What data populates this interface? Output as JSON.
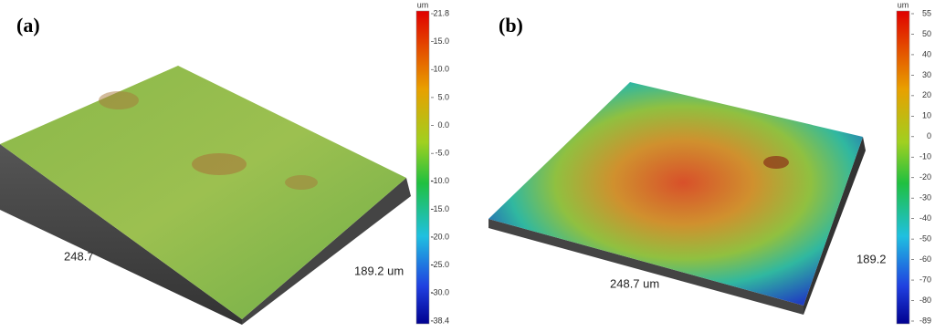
{
  "panels": [
    {
      "label": "(a)",
      "unit": "um",
      "colorbar_ticks": [
        "21.8",
        "15.0",
        "10.0",
        "5.0",
        "0.0",
        "-5.0",
        "-10.0",
        "-15.0",
        "-20.0",
        "-25.0",
        "-30.0",
        "-38.4"
      ],
      "length_label": "248.7",
      "width_label": "189.2 um"
    },
    {
      "label": "(b)",
      "unit": "um",
      "colorbar_ticks": [
        "55",
        "50",
        "40",
        "30",
        "20",
        "10",
        "0",
        "-10",
        "-20",
        "-30",
        "-40",
        "-50",
        "-60",
        "-70",
        "-80",
        "-89"
      ],
      "length_label": "248.7 um",
      "width_label": "189.2"
    }
  ]
}
